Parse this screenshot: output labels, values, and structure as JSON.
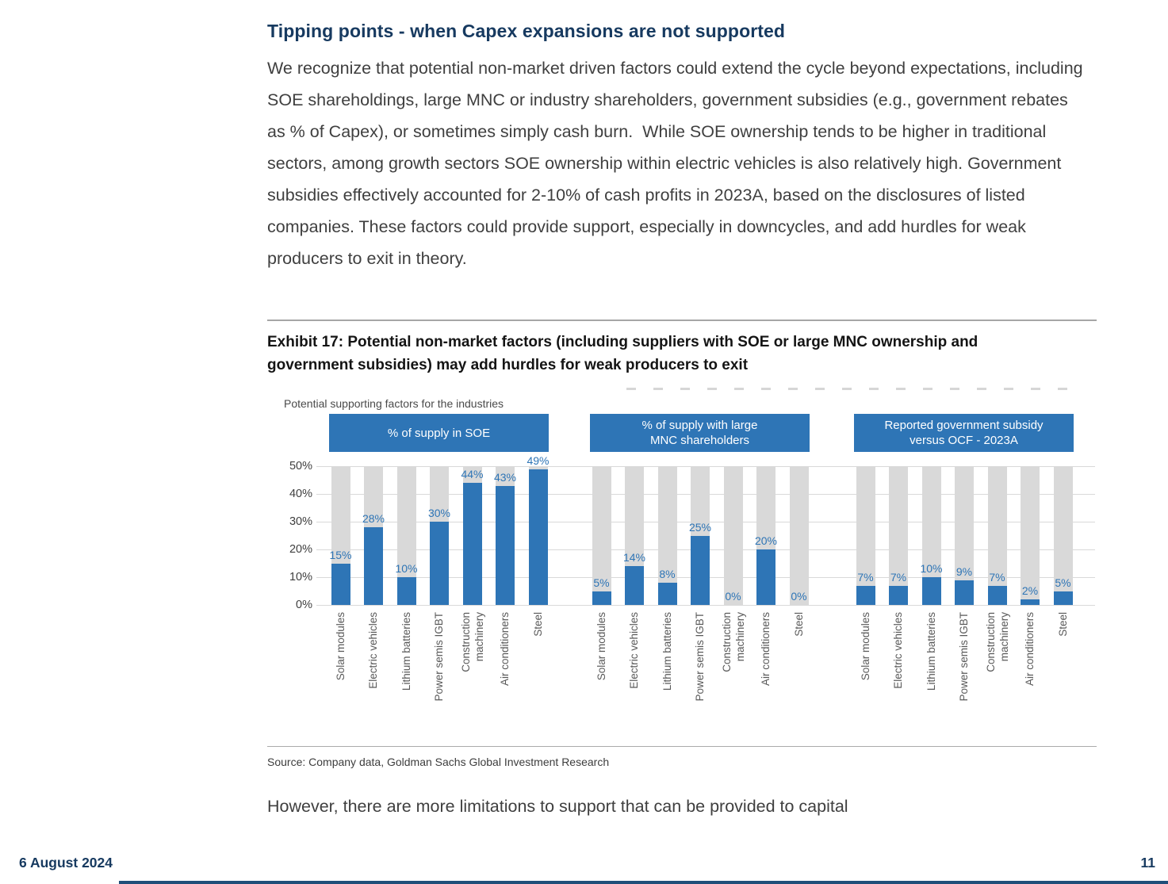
{
  "page": {
    "heading": "Tipping points - when Capex expansions are not supported",
    "paragraph1": "We recognize that potential non-market driven factors could extend the cycle beyond expectations, including SOE shareholdings, large MNC or industry shareholders, government subsidies (e.g., government rebates as % of Capex), or sometimes simply cash burn.  While SOE ownership tends to be higher in traditional sectors, among growth sectors SOE ownership within electric vehicles is also relatively high. Government subsidies effectively accounted for 2-10% of cash profits in 2023A, based on the disclosures of listed companies. These factors could provide support, especially in downcycles, and add hurdles for weak producers to exit in theory.",
    "exhibit_title": "Exhibit 17: Potential non-market factors (including suppliers with SOE or large MNC ownership and government subsidies) may add hurdles for weak producers to exit",
    "source": "Source: Company data, Goldman Sachs Global Investment Research",
    "paragraph2": "However, there are more limitations to support that can be provided to capital",
    "footer": {
      "date": "6 August 2024",
      "page_number": "11"
    }
  },
  "chart_data": {
    "type": "bar",
    "title": "Potential supporting factors for the industries",
    "categories": [
      "Solar modules",
      "Electric vehicles",
      "Lithium batteries",
      "Power semis IGBT",
      "Construction\nmachinery",
      "Air conditioners",
      "Steel"
    ],
    "y_ticks": [
      "50%",
      "40%",
      "30%",
      "20%",
      "10%",
      "0%"
    ],
    "ylim": [
      0,
      50
    ],
    "grid": true,
    "unit": "%",
    "panels": [
      {
        "header": "% of supply in SOE",
        "values": [
          15,
          28,
          10,
          30,
          44,
          43,
          49
        ]
      },
      {
        "header": "% of supply with large\nMNC shareholders",
        "values": [
          5,
          14,
          8,
          25,
          0,
          20,
          0
        ]
      },
      {
        "header": "Reported government subsidy\nversus OCF - 2023A",
        "values": [
          7,
          7,
          10,
          9,
          7,
          2,
          5
        ]
      }
    ],
    "colors": {
      "bar": "#2E75B6",
      "background_bar": "#D9D9D9",
      "value_label": "#2E75B6",
      "header_bg": "#2E75B6",
      "header_text": "#FFFFFF",
      "gridline": "#D9D9D9"
    }
  }
}
